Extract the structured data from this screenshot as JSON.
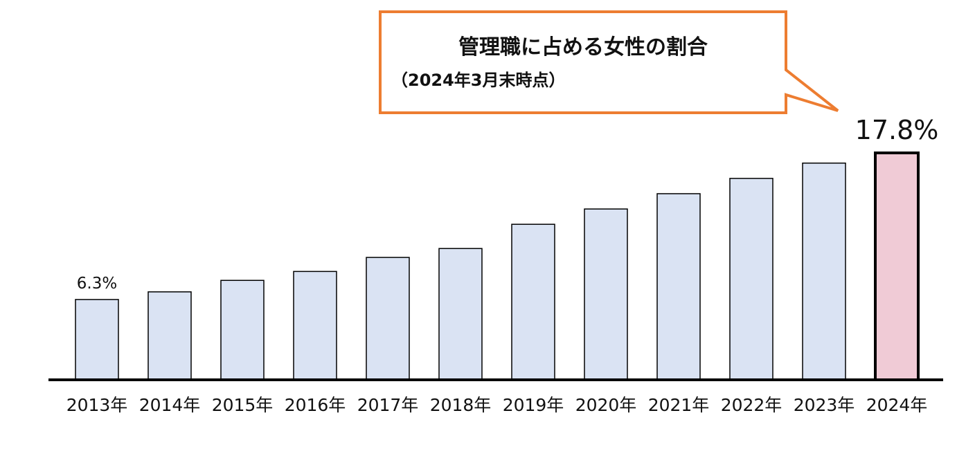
{
  "chart_data": {
    "type": "bar",
    "categories": [
      "2013年",
      "2014年",
      "2015年",
      "2016年",
      "2017年",
      "2018年",
      "2019年",
      "2020年",
      "2021年",
      "2022年",
      "2023年",
      "2024年"
    ],
    "values": [
      6.3,
      6.9,
      7.8,
      8.5,
      9.6,
      10.3,
      12.2,
      13.4,
      14.6,
      15.8,
      17.0,
      17.8
    ],
    "data_labels": [
      {
        "index": 0,
        "text": "6.3%"
      },
      {
        "index": 11,
        "text": "17.8%"
      }
    ],
    "ylim": [
      0,
      18
    ],
    "grid": false,
    "colors": {
      "bar": "#dae3f3",
      "highlight": "#f0cbd6",
      "outline": "#000000",
      "callout_border": "#ed7d31"
    },
    "highlight_index": 11,
    "callout": {
      "title": "管理職に占める女性の割合",
      "subtitle": "（2024年3月末時点）"
    }
  }
}
